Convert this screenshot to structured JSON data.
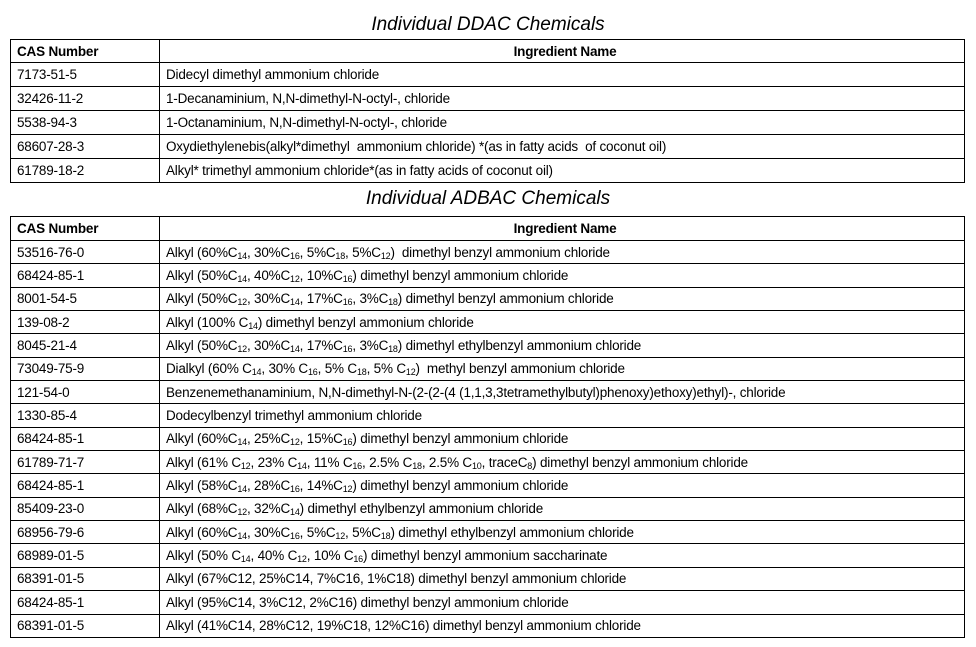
{
  "ddac": {
    "title": "Individual DDAC Chemicals",
    "headers": [
      "CAS Number",
      "Ingredient Name"
    ],
    "rows": [
      [
        "7173-51-5",
        [
          "Didecyl dimethyl ammonium chloride"
        ]
      ],
      [
        "32426-11-2",
        [
          "1-Decanaminium, N,N-dimethyl-N-octyl-, chloride"
        ]
      ],
      [
        "5538-94-3",
        [
          "1-Octanaminium, N,N-dimethyl-N-octyl-, chloride"
        ]
      ],
      [
        "68607-28-3",
        [
          "Oxydiethylenebis(alkyl*dimethyl  ammonium chloride) *(as in fatty acids  of coconut oil)"
        ]
      ],
      [
        "61789-18-2",
        [
          "Alkyl* trimethyl ammonium chloride*(as in fatty acids of coconut oil)"
        ]
      ]
    ]
  },
  "adbac": {
    "title": "Individual ADBAC Chemicals",
    "headers": [
      "CAS Number",
      "Ingredient Name"
    ],
    "rows": [
      [
        "53516-76-0",
        [
          "Alkyl (60%C",
          "14",
          ", 30%C",
          "16",
          ", 5%C",
          "18",
          ", 5%C",
          "12",
          ")  dimethyl benzyl ammonium chloride"
        ]
      ],
      [
        "68424-85-1",
        [
          "Alkyl (50%C",
          "14",
          ", 40%C",
          "12",
          ", 10%C",
          "16",
          ") dimethyl benzyl ammonium chloride"
        ]
      ],
      [
        "8001-54-5",
        [
          "Alkyl (50%C",
          "12",
          ", 30%C",
          "14",
          ", 17%C",
          "16",
          ", 3%C",
          "18",
          ") dimethyl benzyl ammonium chloride"
        ]
      ],
      [
        "139-08-2",
        [
          "Alkyl (100% C",
          "14",
          ") dimethyl benzyl ammonium chloride"
        ]
      ],
      [
        "8045-21-4",
        [
          "Alkyl (50%C",
          "12",
          ", 30%C",
          "14",
          ", 17%C",
          "16",
          ", 3%C",
          "18",
          ") dimethyl ethylbenzyl ammonium chloride"
        ]
      ],
      [
        "73049-75-9",
        [
          "Dialkyl (60% C",
          "14",
          ", 30% C",
          "16",
          ", 5% C",
          "18",
          ", 5% C",
          "12",
          ")  methyl benzyl ammonium chloride"
        ]
      ],
      [
        "121-54-0",
        [
          "Benzenemethanaminium, N,N-dimethyl-N-(2-(2-(4 (1,1,3,3tetramethylbutyl)phenoxy)ethoxy)ethyl)-, chloride"
        ]
      ],
      [
        "1330-85-4",
        [
          "Dodecylbenzyl trimethyl ammonium chloride"
        ]
      ],
      [
        "68424-85-1",
        [
          "Alkyl (60%C",
          "14",
          ", 25%C",
          "12",
          ", 15%C",
          "16",
          ") dimethyl benzyl ammonium chloride"
        ]
      ],
      [
        "61789-71-7",
        [
          "Alkyl (61% C",
          "12",
          ", 23% C",
          "14",
          ", 11% C",
          "16",
          ", 2.5% C",
          "18",
          ", 2.5% C",
          "10",
          ", traceC",
          "8",
          ") dimethyl benzyl ammonium chloride"
        ]
      ],
      [
        "68424-85-1",
        [
          "Alkyl (58%C",
          "14",
          ", 28%C",
          "16",
          ", 14%C",
          "12",
          ") dimethyl benzyl ammonium chloride"
        ]
      ],
      [
        "85409-23-0",
        [
          "Alkyl (68%C",
          "12",
          ", 32%C",
          "14",
          ") dimethyl ethylbenzyl ammonium chloride"
        ]
      ],
      [
        "68956-79-6",
        [
          "Alkyl (60%C",
          "14",
          ", 30%C",
          "16",
          ", 5%C",
          "12",
          ", 5%C",
          "18",
          ") dimethyl ethylbenzyl ammonium chloride"
        ]
      ],
      [
        "68989-01-5",
        [
          "Alkyl (50% C",
          "14",
          ", 40% C",
          "12",
          ", 10% C",
          "16",
          ") dimethyl benzyl ammonium saccharinate"
        ]
      ],
      [
        "68391-01-5",
        [
          "Alkyl (67%C12, 25%C14, 7%C16, 1%C18) dimethyl benzyl ammonium chloride"
        ]
      ],
      [
        "68424-85-1",
        [
          "Alkyl (95%C14, 3%C12, 2%C16) dimethyl benzyl ammonium chloride"
        ]
      ],
      [
        "68391-01-5",
        [
          "Alkyl (41%C14, 28%C12, 19%C18, 12%C16) dimethyl benzyl ammonium chloride"
        ]
      ]
    ]
  }
}
